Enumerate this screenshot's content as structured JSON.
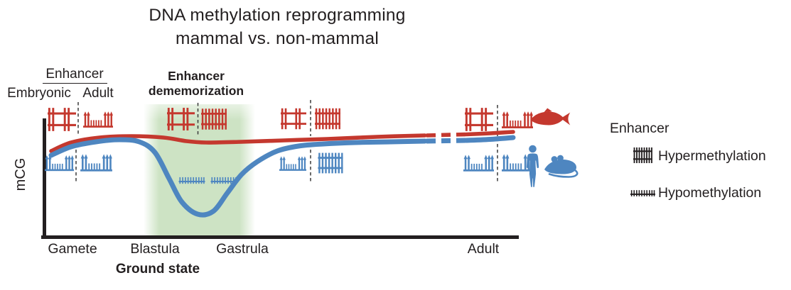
{
  "title": {
    "line1": "DNA methylation reprogramming",
    "line2": "mammal vs. non-mammal"
  },
  "colors": {
    "red": "#c4382e",
    "blue": "#4e86c0",
    "band": "#cde3c4",
    "ink": "#231f20"
  },
  "y_axis_label": "mCG",
  "x_axis": {
    "ticks": [
      "Gamete",
      "Blastula",
      "Gastrula",
      "Adult"
    ],
    "sub_label": "Ground state"
  },
  "enhancer_header": {
    "title": "Enhancer",
    "embryonic": "Embryonic",
    "adult": "Adult"
  },
  "annotation": {
    "line1": "Enhancer",
    "line2": "dememorization"
  },
  "legend": {
    "title": "Enhancer",
    "items": [
      {
        "icon": "hypermethylation-icon",
        "label": "Hypermethylation"
      },
      {
        "icon": "hypomethylation-icon",
        "label": "Hypomethylation"
      }
    ]
  },
  "species_icons": {
    "non_mammal": "fish-icon",
    "mammal": [
      "human-icon",
      "mouse-icon"
    ]
  },
  "enhancer_states": {
    "non_mammal": {
      "gamete": [
        "embryonic-fence",
        "adult-mixed"
      ],
      "blastula": [
        "embryonic-fence",
        "hypermethylated"
      ],
      "gastrula": [
        "embryonic-fence",
        "hypermethylated"
      ],
      "adult": [
        "embryonic-fence",
        "adult-mixed"
      ]
    },
    "mammal": {
      "gamete": [
        "adult-mixed",
        "adult-mixed"
      ],
      "blastula": [
        "hypomethylated",
        "hypomethylated"
      ],
      "gastrula": [
        "adult-mixed",
        "hypermethylated"
      ],
      "adult": [
        "adult-mixed",
        "adult-mixed"
      ]
    }
  },
  "chart_data": {
    "type": "line",
    "x_stages": [
      "Gamete",
      "Blastula",
      "Gastrula",
      "Adult"
    ],
    "ylabel": "mCG",
    "grid": false,
    "series": [
      {
        "name": "non-mammal (fish)",
        "color": "#c4382e",
        "profile": "high mCG maintained through development, only slight dip at blastula"
      },
      {
        "name": "mammal (human, mouse)",
        "color": "#4e86c0",
        "profile": "high mCG in gametes, global demethylation to ground state at blastula, remethylation by gastrula into adulthood"
      }
    ],
    "curves": {
      "non_mammal": {
        "solid_pre": [
          [
            72,
            213
          ],
          [
            100,
            201
          ],
          [
            140,
            194
          ],
          [
            185,
            192
          ],
          [
            230,
            194
          ],
          [
            262,
            199
          ],
          [
            290,
            201
          ],
          [
            340,
            200
          ],
          [
            400,
            198
          ],
          [
            460,
            196
          ],
          [
            530,
            193
          ],
          [
            598,
            191
          ]
        ],
        "break": [
          [
            600,
            191
          ],
          [
            656,
            189.5
          ]
        ],
        "solid_post": [
          [
            656,
            189.5
          ],
          [
            690,
            188
          ],
          [
            722,
            186
          ]
        ]
      },
      "mammal": {
        "solid_pre": [
          [
            72,
            219
          ],
          [
            100,
            207
          ],
          [
            135,
            200
          ],
          [
            168,
            197
          ],
          [
            196,
            200
          ],
          [
            218,
            215
          ],
          [
            238,
            252
          ],
          [
            256,
            285
          ],
          [
            278,
            302
          ],
          [
            300,
            298
          ],
          [
            320,
            272
          ],
          [
            340,
            246
          ],
          [
            362,
            228
          ],
          [
            390,
            213
          ],
          [
            420,
            206
          ],
          [
            455,
            203
          ],
          [
            500,
            201
          ],
          [
            550,
            200
          ],
          [
            598,
            199
          ]
        ],
        "break": [
          [
            600,
            199
          ],
          [
            656,
            198
          ]
        ],
        "solid_post": [
          [
            656,
            198
          ],
          [
            690,
            196.5
          ],
          [
            722,
            194
          ]
        ]
      }
    }
  }
}
